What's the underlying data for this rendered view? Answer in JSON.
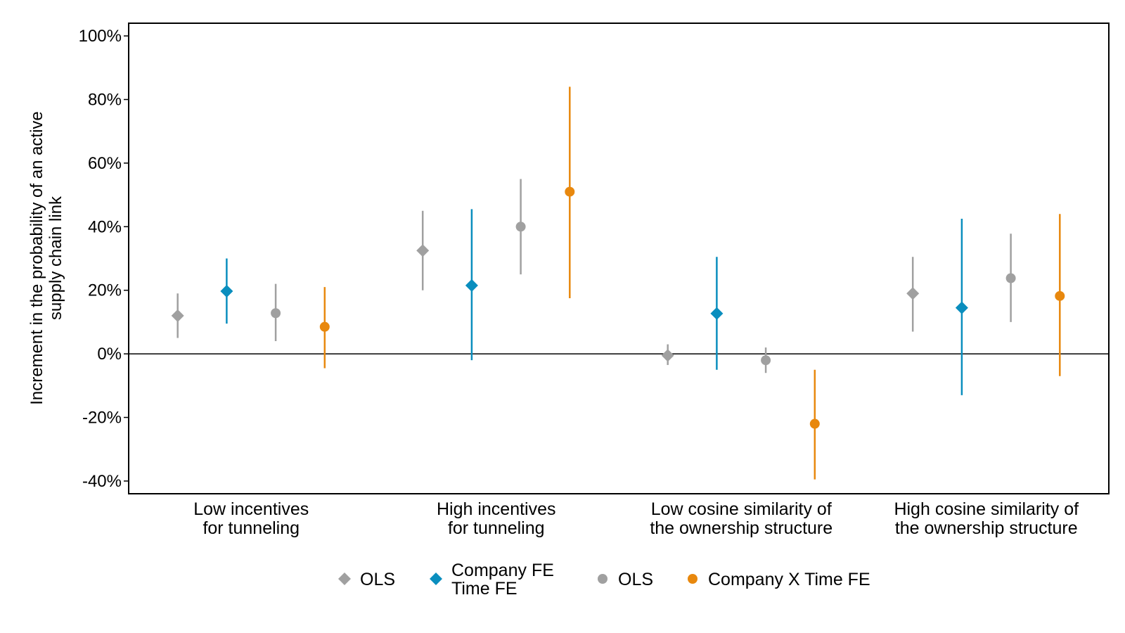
{
  "chart_data": {
    "type": "scatter",
    "ylabel_lines": [
      "Increment in the probability of an active",
      "supply chain link"
    ],
    "ylim": [
      -0.44,
      1.04
    ],
    "yticks": [
      -0.4,
      -0.2,
      0,
      0.2,
      0.4,
      0.6,
      0.8,
      1.0
    ],
    "ytick_labels": [
      "-40%",
      "-20%",
      "0%",
      "20%",
      "40%",
      "60%",
      "80%",
      "100%"
    ],
    "reference_line": 0,
    "grid": false,
    "legend_position": "bottom",
    "categories": [
      {
        "lines": [
          "Low incentives",
          "for tunneling"
        ]
      },
      {
        "lines": [
          "High incentives",
          "for tunneling"
        ]
      },
      {
        "lines": [
          "Low cosine similarity of",
          "the ownership structure"
        ]
      },
      {
        "lines": [
          "High cosine similarity of",
          "the ownership structure"
        ]
      }
    ],
    "series": [
      {
        "name": "OLS",
        "name_lines": [
          "OLS"
        ],
        "marker": "diamond",
        "color": "#A0A0A0",
        "values": [
          0.12,
          0.325,
          -0.005,
          0.19
        ],
        "lower": [
          0.05,
          0.2,
          -0.035,
          0.07
        ],
        "upper": [
          0.19,
          0.45,
          0.03,
          0.305
        ]
      },
      {
        "name": "Company FE Time FE",
        "name_lines": [
          "Company FE",
          "Time FE"
        ],
        "marker": "diamond",
        "color": "#0A8EBE",
        "values": [
          0.197,
          0.215,
          0.127,
          0.145
        ],
        "lower": [
          0.095,
          -0.02,
          -0.05,
          -0.13
        ],
        "upper": [
          0.3,
          0.455,
          0.305,
          0.425
        ]
      },
      {
        "name": "OLS",
        "name_lines": [
          "OLS"
        ],
        "marker": "circle",
        "color": "#A0A0A0",
        "values": [
          0.128,
          0.4,
          -0.02,
          0.238
        ],
        "lower": [
          0.04,
          0.25,
          -0.06,
          0.1
        ],
        "upper": [
          0.22,
          0.55,
          0.02,
          0.378
        ]
      },
      {
        "name": "Company X Time FE",
        "name_lines": [
          "Company X Time FE"
        ],
        "marker": "circle",
        "color": "#E8880E",
        "values": [
          0.085,
          0.51,
          -0.22,
          0.182
        ],
        "lower": [
          -0.045,
          0.175,
          -0.395,
          -0.07
        ],
        "upper": [
          0.21,
          0.84,
          -0.05,
          0.44
        ]
      }
    ]
  }
}
